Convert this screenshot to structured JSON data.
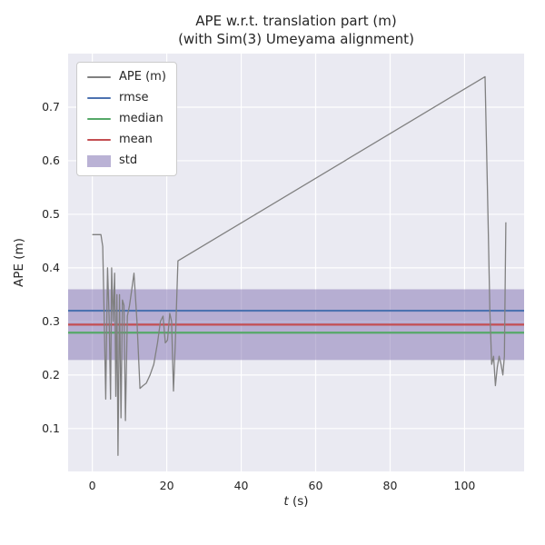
{
  "colors": {
    "ape": "#808080",
    "rmse": "#4c72b0",
    "median": "#55a868",
    "mean": "#c44e52",
    "std_fill": "#8172b2",
    "axes_bg": "#eaeaf2",
    "grid": "#ffffff",
    "text": "#262626"
  },
  "legend": {
    "items": [
      {
        "label": "APE (m)",
        "type": "line",
        "color": "#808080"
      },
      {
        "label": "rmse",
        "type": "line",
        "color": "#4c72b0"
      },
      {
        "label": "median",
        "type": "line",
        "color": "#55a868"
      },
      {
        "label": "mean",
        "type": "line",
        "color": "#c44e52"
      },
      {
        "label": "std",
        "type": "patch",
        "color": "#8172b2"
      }
    ]
  },
  "chart_data": {
    "type": "line",
    "title": "APE w.r.t. translation part (m)",
    "subtitle": "(with Sim(3) Umeyama alignment)",
    "xlabel": "t (s)",
    "xlabel_var": "t",
    "xlabel_unit": " (s)",
    "ylabel": "APE (m)",
    "xlim": [
      -6.5,
      116
    ],
    "ylim": [
      0.02,
      0.8
    ],
    "xticks": [
      0,
      20,
      40,
      60,
      80,
      100
    ],
    "yticks": [
      0.1,
      0.2,
      0.3,
      0.4,
      0.5,
      0.6,
      0.7
    ],
    "grid": true,
    "legend_position": "upper left",
    "stats": {
      "rmse": 0.32,
      "mean": 0.294,
      "median": 0.279,
      "std": 0.066
    },
    "ape_series": {
      "name": "APE (m)",
      "x": [
        0,
        2.3,
        2.8,
        3.2,
        3.6,
        4.1,
        4.5,
        4.9,
        5.2,
        5.6,
        6.0,
        6.3,
        6.6,
        6.9,
        7.3,
        7.7,
        8.1,
        8.5,
        8.9,
        9.4,
        10.0,
        10.6,
        11.2,
        12.0,
        12.8,
        13.6,
        14.5,
        15.5,
        16.5,
        17.5,
        18.3,
        19.0,
        19.6,
        20.2,
        20.8,
        21.3,
        21.8,
        22.3,
        23.0,
        105.5,
        106.3,
        106.8,
        107.3,
        107.8,
        108.3,
        108.8,
        109.3,
        109.8,
        110.3,
        110.7,
        111.1
      ],
      "y": [
        0.462,
        0.462,
        0.44,
        0.3,
        0.155,
        0.4,
        0.31,
        0.155,
        0.4,
        0.3,
        0.39,
        0.16,
        0.35,
        0.05,
        0.35,
        0.12,
        0.34,
        0.33,
        0.115,
        0.31,
        0.33,
        0.36,
        0.39,
        0.3,
        0.175,
        0.18,
        0.185,
        0.2,
        0.22,
        0.26,
        0.3,
        0.31,
        0.26,
        0.265,
        0.315,
        0.3,
        0.17,
        0.26,
        0.413,
        0.757,
        0.5,
        0.32,
        0.22,
        0.235,
        0.18,
        0.215,
        0.235,
        0.22,
        0.2,
        0.235,
        0.485
      ]
    }
  }
}
